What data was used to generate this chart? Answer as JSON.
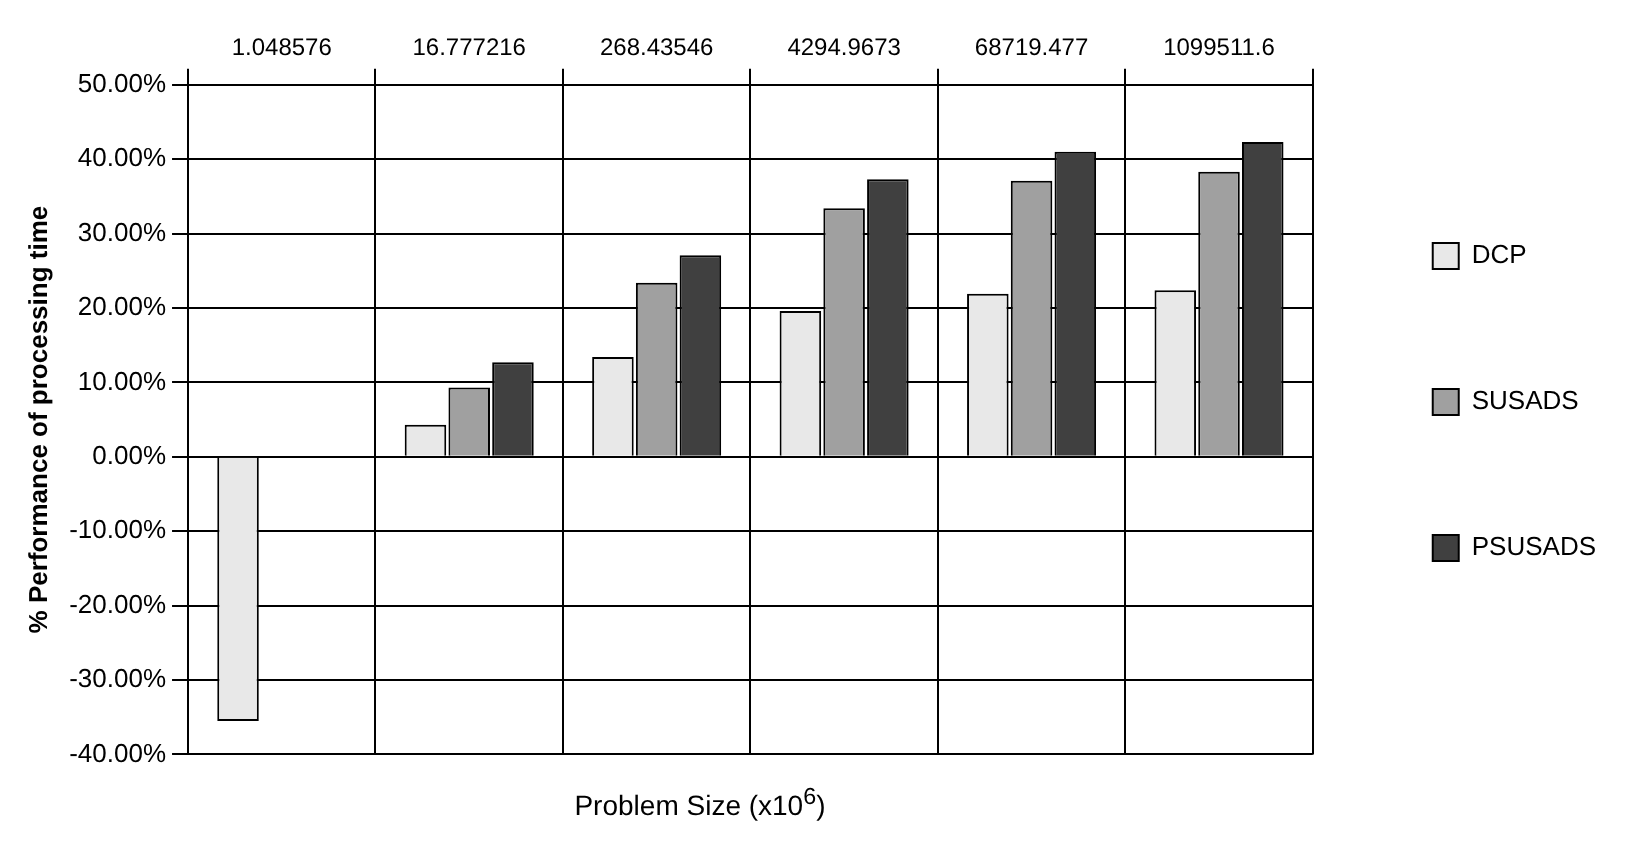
{
  "chart_data": {
    "type": "bar",
    "xlabel": "Problem Size (x10$^{6}$)",
    "ylabel": "% Performance of processing time",
    "categories": [
      "1.048576",
      "16.777216",
      "268.43546",
      "4294.9673",
      "68719.477",
      "1099511.6"
    ],
    "series": [
      {
        "name": "DCP",
        "color": "#e8e8e8",
        "values": [
          -35.5,
          4.3,
          13.4,
          19.6,
          21.9,
          22.4
        ]
      },
      {
        "name": "SUSADS",
        "color": "#a0a0a0",
        "values": [
          null,
          9.3,
          23.4,
          33.4,
          37.1,
          38.3
        ]
      },
      {
        "name": "PSUSADS",
        "color": "#404040",
        "values": [
          null,
          12.7,
          27.1,
          37.3,
          41,
          42.3
        ]
      }
    ],
    "ylim": [
      -40,
      50
    ],
    "yticks": [
      {
        "value": -40,
        "label": "-40.00%"
      },
      {
        "value": -30,
        "label": "-30.00%"
      },
      {
        "value": -20,
        "label": "-20.00%"
      },
      {
        "value": -10,
        "label": "-10.00%"
      },
      {
        "value": 0,
        "label": "0.00%"
      },
      {
        "value": 10,
        "label": "10.00%"
      },
      {
        "value": 20,
        "label": "20.00%"
      },
      {
        "value": 30,
        "label": "30.00%"
      },
      {
        "value": 40,
        "label": "40.00%"
      },
      {
        "value": 50,
        "label": "50.00%"
      }
    ],
    "grid": true,
    "legend": "right"
  }
}
